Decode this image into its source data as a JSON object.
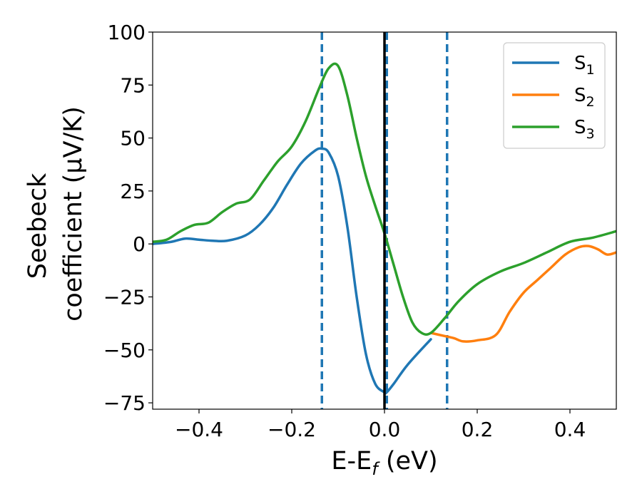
{
  "chart_data": {
    "type": "line",
    "xlabel_main": "E-E",
    "xlabel_sub": "f",
    "xlabel_unit": " (eV)",
    "ylabel_line1": "Seebeck",
    "ylabel_line2": "coefficient  (μV/K)",
    "xlim": [
      -0.5,
      0.5
    ],
    "ylim": [
      -78,
      100
    ],
    "xticks": [
      -0.4,
      -0.2,
      0.0,
      0.2,
      0.4
    ],
    "xtick_labels": [
      "−0.4",
      "−0.2",
      "0.0",
      "0.2",
      "0.4"
    ],
    "yticks": [
      -75,
      -50,
      -25,
      0,
      25,
      50,
      75,
      100
    ],
    "ytick_labels": [
      "−75",
      "−50",
      "−25",
      "0",
      "25",
      "50",
      "75",
      "100"
    ],
    "grid": false,
    "legend_position": "top-right",
    "vertical_lines": [
      {
        "x": -0.135,
        "style": "dashed",
        "color": "#1f77b4"
      },
      {
        "x": 0.005,
        "style": "dashed",
        "color": "#1f77b4"
      },
      {
        "x": 0.135,
        "style": "dashed",
        "color": "#1f77b4"
      },
      {
        "x": 0.0,
        "style": "solid",
        "color": "#000000"
      }
    ],
    "series": [
      {
        "name_main": "S",
        "name_sub": "1",
        "color": "#1f77b4",
        "x": [
          -0.5,
          -0.46,
          -0.43,
          -0.4,
          -0.37,
          -0.34,
          -0.3,
          -0.27,
          -0.24,
          -0.21,
          -0.18,
          -0.15,
          -0.135,
          -0.12,
          -0.1,
          -0.08,
          -0.06,
          -0.04,
          -0.02,
          0.0,
          0.005,
          0.02,
          0.05,
          0.1
        ],
        "y": [
          0,
          1,
          2.5,
          2,
          1.5,
          1.5,
          4,
          9,
          17,
          28,
          38,
          44,
          45,
          43,
          32,
          8,
          -25,
          -52,
          -66,
          -70,
          -70,
          -66,
          -57,
          -45
        ]
      },
      {
        "name_main": "S",
        "name_sub": "2",
        "color": "#ff7f0e",
        "x": [
          0.1,
          0.13,
          0.15,
          0.17,
          0.2,
          0.24,
          0.27,
          0.3,
          0.33,
          0.36,
          0.39,
          0.42,
          0.44,
          0.46,
          0.48,
          0.5
        ],
        "y": [
          -42,
          -43.5,
          -44.5,
          -46,
          -45.5,
          -43,
          -32,
          -23,
          -17,
          -11,
          -5,
          -1.5,
          -1,
          -2.5,
          -5,
          -4
        ]
      },
      {
        "name_main": "S",
        "name_sub": "3",
        "color": "#2ca02c",
        "x": [
          -0.5,
          -0.47,
          -0.44,
          -0.41,
          -0.38,
          -0.35,
          -0.32,
          -0.29,
          -0.26,
          -0.23,
          -0.2,
          -0.17,
          -0.14,
          -0.12,
          -0.1,
          -0.08,
          -0.06,
          -0.04,
          -0.02,
          0.0,
          0.02,
          0.04,
          0.06,
          0.08,
          0.1,
          0.13,
          0.16,
          0.2,
          0.25,
          0.3,
          0.35,
          0.4,
          0.45,
          0.5
        ],
        "y": [
          1,
          2,
          6,
          9,
          10,
          15,
          19,
          21,
          30,
          39,
          46,
          58,
          74,
          83,
          84,
          70,
          50,
          32,
          18,
          5,
          -10,
          -25,
          -37,
          -42,
          -42,
          -35,
          -27,
          -19,
          -13,
          -9,
          -4,
          1,
          3,
          6
        ]
      }
    ]
  }
}
